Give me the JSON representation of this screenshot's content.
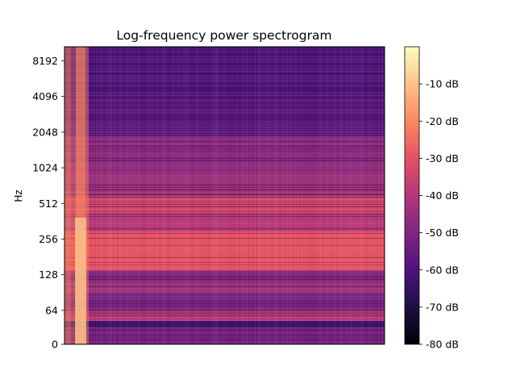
{
  "chart_data": {
    "type": "heatmap",
    "title": "Log-frequency power spectrogram",
    "xlabel": "",
    "ylabel": "Hz",
    "y_scale": "log (symlog near 0)",
    "y_ticks": [
      0,
      64,
      128,
      256,
      512,
      1024,
      2048,
      4096,
      8192
    ],
    "y_tick_labels": [
      "0",
      "64",
      "128",
      "256",
      "512",
      "1024",
      "2048",
      "4096",
      "8192"
    ],
    "colormap": "magma",
    "colorbar": {
      "range": [
        -80,
        0
      ],
      "ticks": [
        -10,
        -20,
        -30,
        -40,
        -50,
        -60,
        -70,
        -80
      ],
      "tick_labels": [
        "-10 dB",
        "-20 dB",
        "-30 dB",
        "-40 dB",
        "-50 dB",
        "-60 dB",
        "-70 dB",
        "-80 dB"
      ]
    },
    "bands": [
      {
        "hz_low": 0,
        "hz_high": 32,
        "db": -52
      },
      {
        "hz_low": 32,
        "hz_high": 45,
        "db": -62
      },
      {
        "hz_low": 45,
        "hz_high": 64,
        "db": -40
      },
      {
        "hz_low": 64,
        "hz_high": 90,
        "db": -52
      },
      {
        "hz_low": 90,
        "hz_high": 115,
        "db": -45
      },
      {
        "hz_low": 115,
        "hz_high": 140,
        "db": -50
      },
      {
        "hz_low": 140,
        "hz_high": 300,
        "db": -30
      },
      {
        "hz_low": 300,
        "hz_high": 420,
        "db": -40
      },
      {
        "hz_low": 420,
        "hz_high": 600,
        "db": -35
      },
      {
        "hz_low": 600,
        "hz_high": 1000,
        "db": -45
      },
      {
        "hz_low": 1000,
        "hz_high": 1900,
        "db": -48
      },
      {
        "hz_low": 1900,
        "hz_high": 4000,
        "db": -58
      },
      {
        "hz_low": 4000,
        "hz_high": 11000,
        "db": -60
      }
    ],
    "onset_region": {
      "description": "bright broadband onset at the left edge",
      "db": -20
    }
  }
}
